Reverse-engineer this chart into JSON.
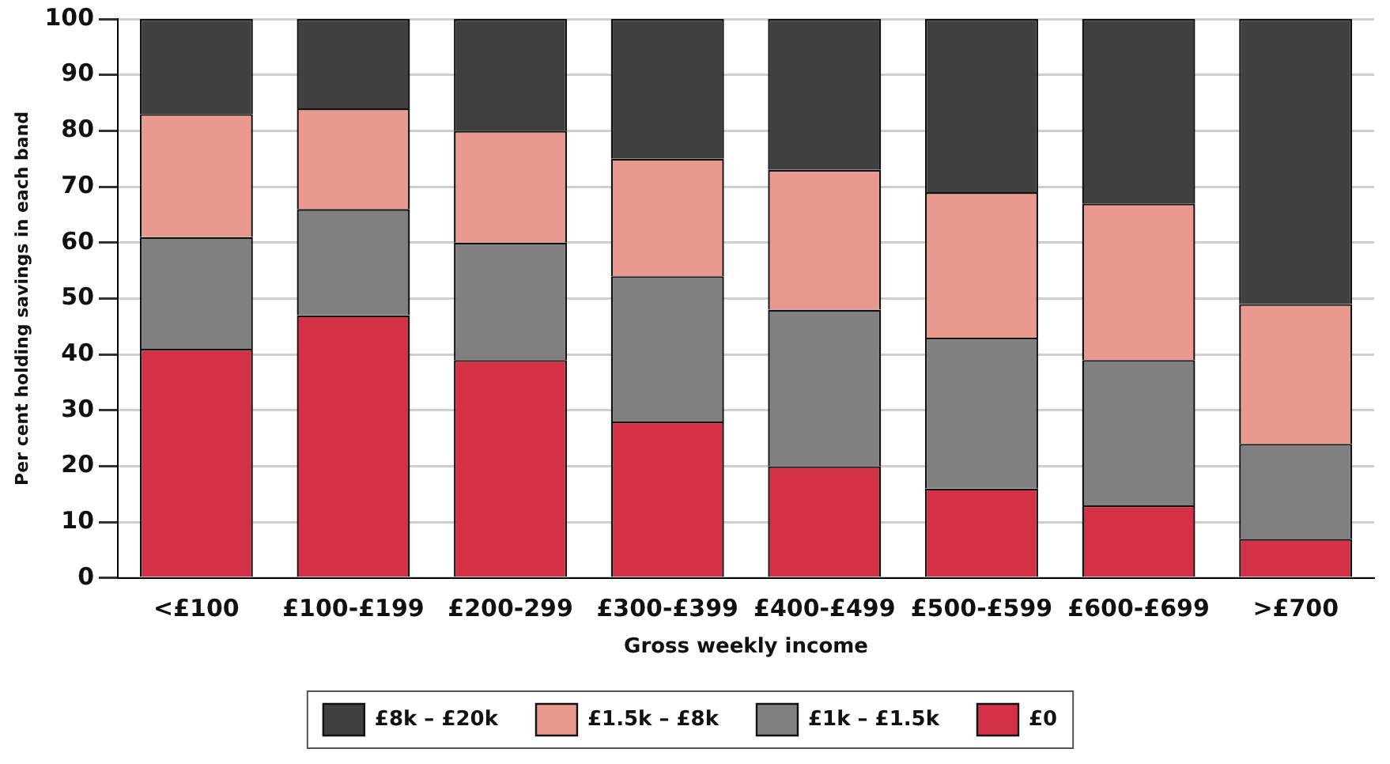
{
  "chart_data": {
    "type": "bar",
    "stacked": true,
    "xlabel": "Gross weekly income",
    "ylabel": "Per cent holding savings in each band",
    "categories": [
      "<£100",
      "£100-£199",
      "£200-299",
      "£300-£399",
      "£400-£499",
      "£500-£599",
      "£600-£699",
      ">£700"
    ],
    "series": [
      {
        "name": "£0",
        "color": "#d33246",
        "values": [
          41,
          47,
          39,
          28,
          20,
          16,
          13,
          7
        ]
      },
      {
        "name": "£1k – £1.5k",
        "color": "#808080",
        "values": [
          20,
          19,
          21,
          26,
          28,
          27,
          26,
          17
        ]
      },
      {
        "name": "£1.5k – £8k",
        "color": "#ea998f",
        "values": [
          22,
          18,
          20,
          21,
          25,
          26,
          28,
          25
        ]
      },
      {
        "name": "£8k – £20k",
        "color": "#404040",
        "values": [
          17,
          16,
          20,
          25,
          27,
          31,
          33,
          51
        ]
      }
    ],
    "ylim": [
      0,
      100
    ],
    "yticks": [
      0,
      10,
      20,
      30,
      40,
      50,
      60,
      70,
      80,
      90,
      100
    ],
    "grid": "y",
    "legend": "bottom"
  }
}
